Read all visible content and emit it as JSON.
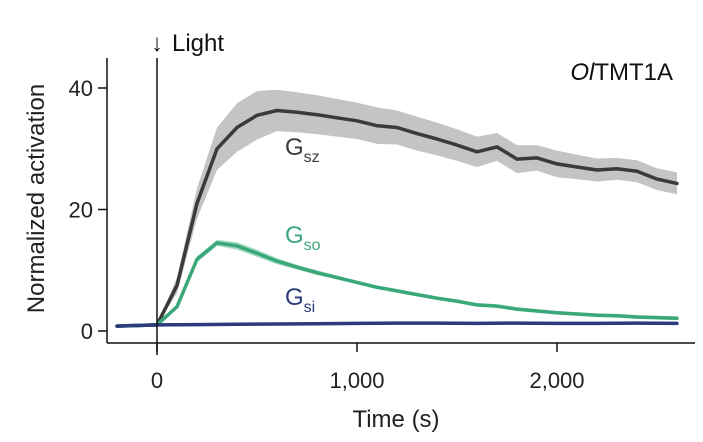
{
  "chart_data": {
    "type": "line",
    "title": "OlTMT1A",
    "title_parts": {
      "italic": "Ol",
      "regular": "TMT1A"
    },
    "xlabel": "Time (s)",
    "ylabel": "Normalized activation",
    "xlim": [
      -200,
      2650
    ],
    "ylim": [
      0,
      45
    ],
    "x_ticks": [
      0,
      1000,
      2000
    ],
    "x_tick_labels": [
      "0",
      "1,000",
      "2,000"
    ],
    "y_ticks": [
      0,
      20,
      40
    ],
    "y_tick_labels": [
      "0",
      "20",
      "40"
    ],
    "annotation": {
      "arrow": "↓",
      "text": "Light",
      "x": 0
    },
    "series": [
      {
        "name": "Gsz",
        "label_main": "G",
        "label_sub": "sz",
        "color": "#3a3a3a",
        "band_color": "#c4c4c4",
        "label_at": [
          640,
          29
        ],
        "x": [
          -200,
          -100,
          0,
          100,
          200,
          300,
          400,
          500,
          600,
          700,
          800,
          900,
          1000,
          1100,
          1200,
          1300,
          1400,
          1500,
          1600,
          1700,
          1800,
          1900,
          2000,
          2100,
          2200,
          2300,
          2400,
          2500,
          2600
        ],
        "y": [
          0.8,
          0.9,
          1.0,
          7.5,
          21,
          30,
          33.5,
          35.5,
          36.3,
          36.0,
          35.6,
          35.1,
          34.6,
          33.8,
          33.5,
          32.5,
          31.6,
          30.6,
          29.5,
          30.3,
          28.3,
          28.5,
          27.5,
          27.0,
          26.5,
          26.7,
          26.3,
          25.0,
          24.3
        ],
        "y_upper": [
          0.8,
          0.9,
          1.0,
          8.8,
          23.5,
          33.5,
          37.5,
          39.5,
          39.7,
          39.3,
          38.8,
          38.2,
          37.6,
          36.8,
          36.3,
          35.3,
          34.3,
          33.2,
          32.0,
          32.6,
          30.6,
          30.6,
          29.7,
          29.0,
          28.4,
          28.5,
          28.1,
          26.8,
          26.1
        ],
        "y_lower": [
          0.8,
          0.9,
          1.0,
          6.2,
          18.5,
          26.5,
          29.5,
          31.5,
          32.9,
          32.7,
          32.4,
          32.0,
          31.6,
          30.8,
          30.7,
          29.7,
          28.9,
          28.0,
          27.0,
          28.0,
          26.0,
          26.4,
          25.3,
          25.0,
          24.6,
          24.9,
          24.5,
          23.2,
          22.5
        ]
      },
      {
        "name": "Gso",
        "label_main": "G",
        "label_sub": "so",
        "color": "#3aa87a",
        "band_color": "#a6dcc2",
        "label_at": [
          640,
          14.5
        ],
        "x": [
          -200,
          -100,
          0,
          100,
          200,
          300,
          400,
          500,
          600,
          700,
          800,
          900,
          1000,
          1100,
          1200,
          1300,
          1400,
          1500,
          1600,
          1700,
          1800,
          1900,
          2000,
          2100,
          2200,
          2300,
          2400,
          2500,
          2600
        ],
        "y": [
          0.8,
          0.9,
          1.0,
          4.0,
          11.8,
          14.5,
          14.0,
          12.8,
          11.5,
          10.5,
          9.6,
          8.8,
          8.0,
          7.2,
          6.6,
          6.0,
          5.4,
          4.9,
          4.3,
          4.1,
          3.6,
          3.3,
          3.0,
          2.8,
          2.6,
          2.5,
          2.3,
          2.2,
          2.1
        ],
        "y_upper": [
          0.8,
          0.9,
          1.0,
          4.3,
          12.3,
          15.0,
          14.6,
          13.4,
          12.0,
          10.9,
          10.0,
          9.1,
          8.3,
          7.5,
          6.9,
          6.3,
          5.7,
          5.2,
          4.6,
          4.4,
          3.9,
          3.6,
          3.3,
          3.1,
          2.9,
          2.8,
          2.6,
          2.5,
          2.4
        ],
        "y_lower": [
          0.8,
          0.9,
          1.0,
          3.7,
          11.3,
          14.0,
          13.4,
          12.2,
          11.0,
          10.1,
          9.2,
          8.5,
          7.7,
          6.9,
          6.3,
          5.7,
          5.1,
          4.6,
          4.0,
          3.8,
          3.3,
          3.0,
          2.7,
          2.5,
          2.3,
          2.2,
          2.0,
          1.9,
          1.8
        ]
      },
      {
        "name": "Gsi",
        "label_main": "G",
        "label_sub": "si",
        "color": "#2b3a7a",
        "band_color": "#9aa4cc",
        "label_at": [
          640,
          4.3
        ],
        "x": [
          -200,
          -100,
          0,
          200,
          400,
          600,
          800,
          1000,
          1200,
          1400,
          1600,
          1800,
          2000,
          2200,
          2400,
          2600
        ],
        "y": [
          0.8,
          0.9,
          1.0,
          1.05,
          1.1,
          1.15,
          1.2,
          1.25,
          1.3,
          1.3,
          1.25,
          1.3,
          1.25,
          1.25,
          1.3,
          1.25
        ],
        "y_upper": [
          0.8,
          0.9,
          1.0,
          1.15,
          1.2,
          1.25,
          1.3,
          1.35,
          1.4,
          1.4,
          1.35,
          1.4,
          1.35,
          1.35,
          1.4,
          1.35
        ],
        "y_lower": [
          0.8,
          0.9,
          1.0,
          0.95,
          1.0,
          1.05,
          1.1,
          1.15,
          1.2,
          1.2,
          1.15,
          1.2,
          1.15,
          1.15,
          1.2,
          1.15
        ]
      }
    ]
  }
}
